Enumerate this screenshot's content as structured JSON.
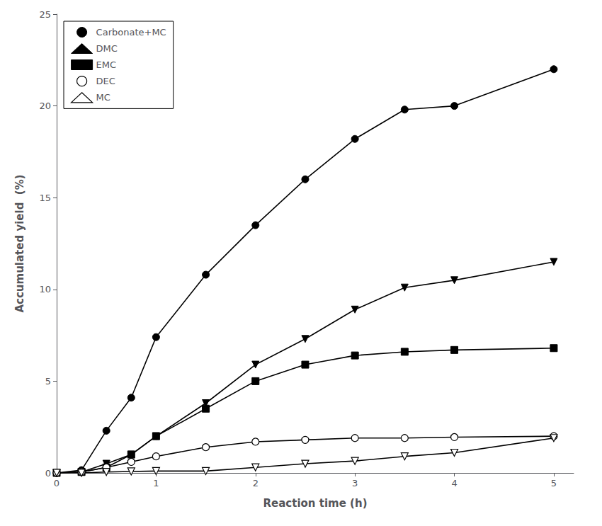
{
  "chart_data": {
    "type": "line",
    "xlabel": "Reaction time (h)",
    "ylabel": "Accumulated yield  (%)",
    "x": [
      0,
      0.25,
      0.5,
      0.75,
      1.0,
      1.5,
      2.0,
      2.5,
      3.0,
      3.5,
      4.0,
      5.0
    ],
    "series": [
      {
        "name": "Carbonate+MC",
        "color": "#000000",
        "marker": "circle",
        "values": [
          0,
          0.15,
          2.3,
          4.1,
          7.4,
          10.8,
          13.5,
          16.0,
          18.2,
          19.8,
          20.0,
          22.0
        ]
      },
      {
        "name": "DMC",
        "color": "#000000",
        "marker": "triangle_down",
        "values": [
          0,
          0.05,
          0.5,
          1.0,
          2.0,
          3.8,
          5.9,
          7.3,
          8.9,
          10.1,
          10.5,
          11.5
        ]
      },
      {
        "name": "EMC",
        "color": "#000000",
        "marker": "square",
        "values": [
          0,
          0.05,
          0.3,
          1.0,
          2.0,
          3.5,
          5.0,
          5.9,
          6.4,
          6.6,
          6.7,
          6.8
        ]
      },
      {
        "name": "DEC",
        "color": "#000000",
        "marker": "circle_open",
        "values": [
          0,
          0.05,
          0.3,
          0.6,
          0.9,
          1.4,
          1.7,
          1.8,
          1.9,
          1.9,
          1.95,
          2.0
        ]
      },
      {
        "name": "MC",
        "color": "#000000",
        "marker": "triangle_down_open",
        "values": [
          0,
          0.0,
          0.05,
          0.08,
          0.1,
          0.1,
          0.3,
          0.5,
          0.65,
          0.9,
          1.1,
          1.9
        ]
      }
    ],
    "xlim": [
      0,
      5.2
    ],
    "ylim": [
      0,
      25
    ],
    "xticks": [
      0,
      1,
      2,
      3,
      4,
      5
    ],
    "yticks": [
      0,
      5,
      10,
      15,
      20,
      25
    ],
    "grid": false,
    "legend": "upper left"
  }
}
